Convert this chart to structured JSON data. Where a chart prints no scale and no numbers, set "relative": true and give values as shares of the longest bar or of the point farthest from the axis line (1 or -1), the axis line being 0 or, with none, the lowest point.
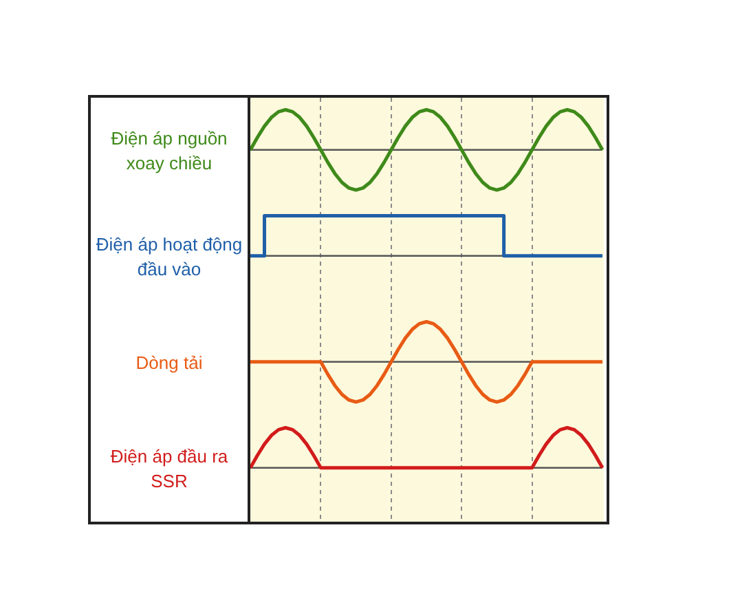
{
  "chart_data": [
    {
      "type": "line",
      "relative": true,
      "grid": "x",
      "marker": "none",
      "categories": [
        null,
        null,
        null,
        null,
        null,
        null,
        null,
        null,
        null,
        null,
        null,
        null,
        null,
        null,
        null,
        null,
        null,
        null,
        null,
        null,
        null,
        null,
        null,
        null,
        null,
        null,
        null,
        null,
        null,
        null,
        null,
        null,
        null,
        null,
        null,
        null,
        null,
        null,
        null,
        null,
        null,
        null,
        null,
        null,
        null,
        null,
        null,
        null,
        null,
        null,
        null
      ],
      "series": [
        {
          "name": "Điện áp nguồn xoay chiều",
          "color": "#3f8a1a",
          "values": [
            0,
            0.31,
            0.59,
            0.81,
            0.95,
            1,
            0.95,
            0.81,
            0.59,
            0.31,
            0,
            -0.31,
            -0.59,
            -0.81,
            -0.95,
            -1,
            -0.95,
            -0.81,
            -0.59,
            -0.31,
            0,
            0.31,
            0.59,
            0.81,
            0.95,
            1,
            0.95,
            0.81,
            0.59,
            0.31,
            0,
            -0.31,
            -0.59,
            -0.81,
            -0.95,
            -1,
            -0.95,
            -0.81,
            -0.59,
            -0.31,
            0,
            0.31,
            0.59,
            0.81,
            0.95,
            1,
            0.95,
            0.81,
            0.59,
            0.31,
            0
          ]
        }
      ]
    },
    {
      "type": "step",
      "relative": true,
      "grid": "x",
      "marker": "none",
      "categories": [
        null,
        null,
        null,
        null,
        null,
        null,
        null,
        null,
        null,
        null,
        null,
        null,
        null,
        null,
        null,
        null,
        null,
        null,
        null,
        null,
        null,
        null,
        null,
        null,
        null,
        null,
        null,
        null,
        null,
        null,
        null,
        null,
        null,
        null,
        null,
        null,
        null,
        null,
        null,
        null,
        null,
        null,
        null,
        null,
        null,
        null,
        null,
        null,
        null,
        null,
        null
      ],
      "series": [
        {
          "name": "Điện áp hoạt động đầu vào",
          "color": "#1f5fa8",
          "values": [
            0,
            0,
            0,
            1,
            1,
            1,
            1,
            1,
            1,
            1,
            1,
            1,
            1,
            1,
            1,
            1,
            1,
            1,
            1,
            1,
            1,
            1,
            1,
            1,
            1,
            1,
            1,
            1,
            1,
            1,
            1,
            1,
            1,
            1,
            1,
            1,
            1,
            0,
            0,
            0,
            0,
            0,
            0,
            0,
            0,
            0,
            0,
            0,
            0,
            0,
            0
          ]
        }
      ]
    },
    {
      "type": "line",
      "relative": true,
      "grid": "x",
      "marker": "none",
      "categories": [
        null,
        null,
        null,
        null,
        null,
        null,
        null,
        null,
        null,
        null,
        null,
        null,
        null,
        null,
        null,
        null,
        null,
        null,
        null,
        null,
        null,
        null,
        null,
        null,
        null,
        null,
        null,
        null,
        null,
        null,
        null,
        null,
        null,
        null,
        null,
        null,
        null,
        null,
        null,
        null,
        null,
        null,
        null,
        null,
        null,
        null,
        null,
        null,
        null,
        null,
        null
      ],
      "series": [
        {
          "name": "Dòng tải",
          "color": "#e85b14",
          "values": [
            0,
            0,
            0,
            0,
            0,
            0,
            0,
            0,
            0,
            0,
            0,
            -0.31,
            -0.59,
            -0.81,
            -0.95,
            -1,
            -0.95,
            -0.81,
            -0.59,
            -0.31,
            0,
            0.31,
            0.59,
            0.81,
            0.95,
            1,
            0.95,
            0.81,
            0.59,
            0.31,
            0,
            -0.31,
            -0.59,
            -0.81,
            -0.95,
            -1,
            -0.95,
            -0.81,
            -0.59,
            -0.31,
            0,
            0,
            0,
            0,
            0,
            0,
            0,
            0,
            0,
            0,
            0
          ]
        }
      ]
    },
    {
      "type": "line",
      "relative": true,
      "grid": "x",
      "marker": "none",
      "categories": [
        null,
        null,
        null,
        null,
        null,
        null,
        null,
        null,
        null,
        null,
        null,
        null,
        null,
        null,
        null,
        null,
        null,
        null,
        null,
        null,
        null,
        null,
        null,
        null,
        null,
        null,
        null,
        null,
        null,
        null,
        null,
        null,
        null,
        null,
        null,
        null,
        null,
        null,
        null,
        null,
        null,
        null,
        null,
        null,
        null,
        null,
        null,
        null,
        null,
        null,
        null
      ],
      "series": [
        {
          "name": "Điện áp đầu ra SSR",
          "color": "#d21c1c",
          "values": [
            0,
            0.31,
            0.59,
            0.81,
            0.95,
            1,
            0.95,
            0.81,
            0.59,
            0.31,
            0,
            0,
            0,
            0,
            0,
            0,
            0,
            0,
            0,
            0,
            0,
            0,
            0,
            0,
            0,
            0,
            0,
            0,
            0,
            0,
            0,
            0,
            0,
            0,
            0,
            0,
            0,
            0,
            0,
            0,
            0,
            0.31,
            0.59,
            0.81,
            0.95,
            1,
            0.95,
            0.81,
            0.59,
            0.31,
            0
          ]
        }
      ]
    }
  ]
}
